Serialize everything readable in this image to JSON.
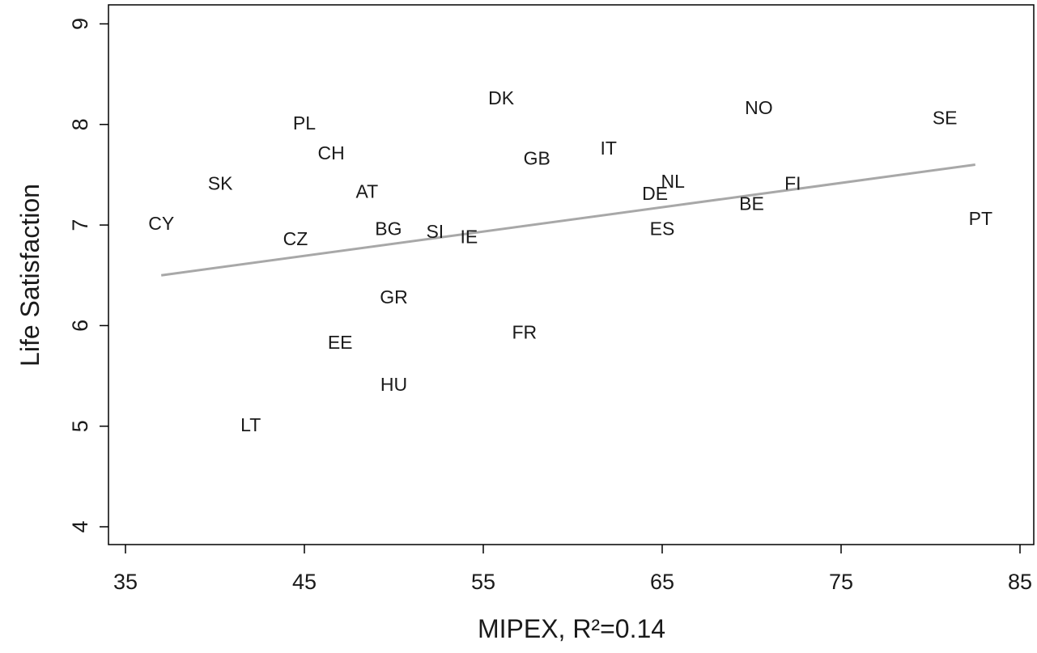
{
  "chart_data": {
    "type": "scatter",
    "title": "",
    "xlabel": "MIPEX, R²=0.14",
    "ylabel": "Life Satisfaction",
    "xlim": [
      33,
      86
    ],
    "ylim": [
      3.8,
      9.2
    ],
    "xticks": [
      35,
      45,
      55,
      65,
      75,
      85
    ],
    "yticks": [
      4,
      5,
      6,
      7,
      8,
      9
    ],
    "grid": false,
    "legend": "none",
    "colors": {
      "fit_line": "#a8a8a8",
      "axis": "#000000",
      "labels": "#1a1a1a"
    },
    "points": [
      {
        "label": "CY",
        "x": 37,
        "y": 7.0
      },
      {
        "label": "SK",
        "x": 40.3,
        "y": 7.4
      },
      {
        "label": "PL",
        "x": 45,
        "y": 8.0
      },
      {
        "label": "CH",
        "x": 46.5,
        "y": 7.7
      },
      {
        "label": "CZ",
        "x": 44.5,
        "y": 6.85
      },
      {
        "label": "AT",
        "x": 48.5,
        "y": 7.32
      },
      {
        "label": "BG",
        "x": 49.7,
        "y": 6.95
      },
      {
        "label": "SI",
        "x": 52.3,
        "y": 6.92
      },
      {
        "label": "IE",
        "x": 54.2,
        "y": 6.87
      },
      {
        "label": "GR",
        "x": 50,
        "y": 6.27
      },
      {
        "label": "EE",
        "x": 47,
        "y": 5.82
      },
      {
        "label": "HU",
        "x": 50,
        "y": 5.4
      },
      {
        "label": "LT",
        "x": 42,
        "y": 5.0
      },
      {
        "label": "DK",
        "x": 56,
        "y": 8.25
      },
      {
        "label": "GB",
        "x": 58,
        "y": 7.65
      },
      {
        "label": "IT",
        "x": 62,
        "y": 7.75
      },
      {
        "label": "FR",
        "x": 57.3,
        "y": 5.92
      },
      {
        "label": "DE",
        "x": 64.6,
        "y": 7.3
      },
      {
        "label": "NL",
        "x": 65.6,
        "y": 7.42
      },
      {
        "label": "ES",
        "x": 65,
        "y": 6.95
      },
      {
        "label": "NO",
        "x": 70.4,
        "y": 8.15
      },
      {
        "label": "BE",
        "x": 70,
        "y": 7.2
      },
      {
        "label": "FI",
        "x": 72.3,
        "y": 7.4
      },
      {
        "label": "SE",
        "x": 80.8,
        "y": 8.05
      },
      {
        "label": "PT",
        "x": 82.8,
        "y": 7.05
      }
    ],
    "fit_line": {
      "x": [
        37,
        82.5
      ],
      "y": [
        6.5,
        7.6
      ]
    }
  }
}
